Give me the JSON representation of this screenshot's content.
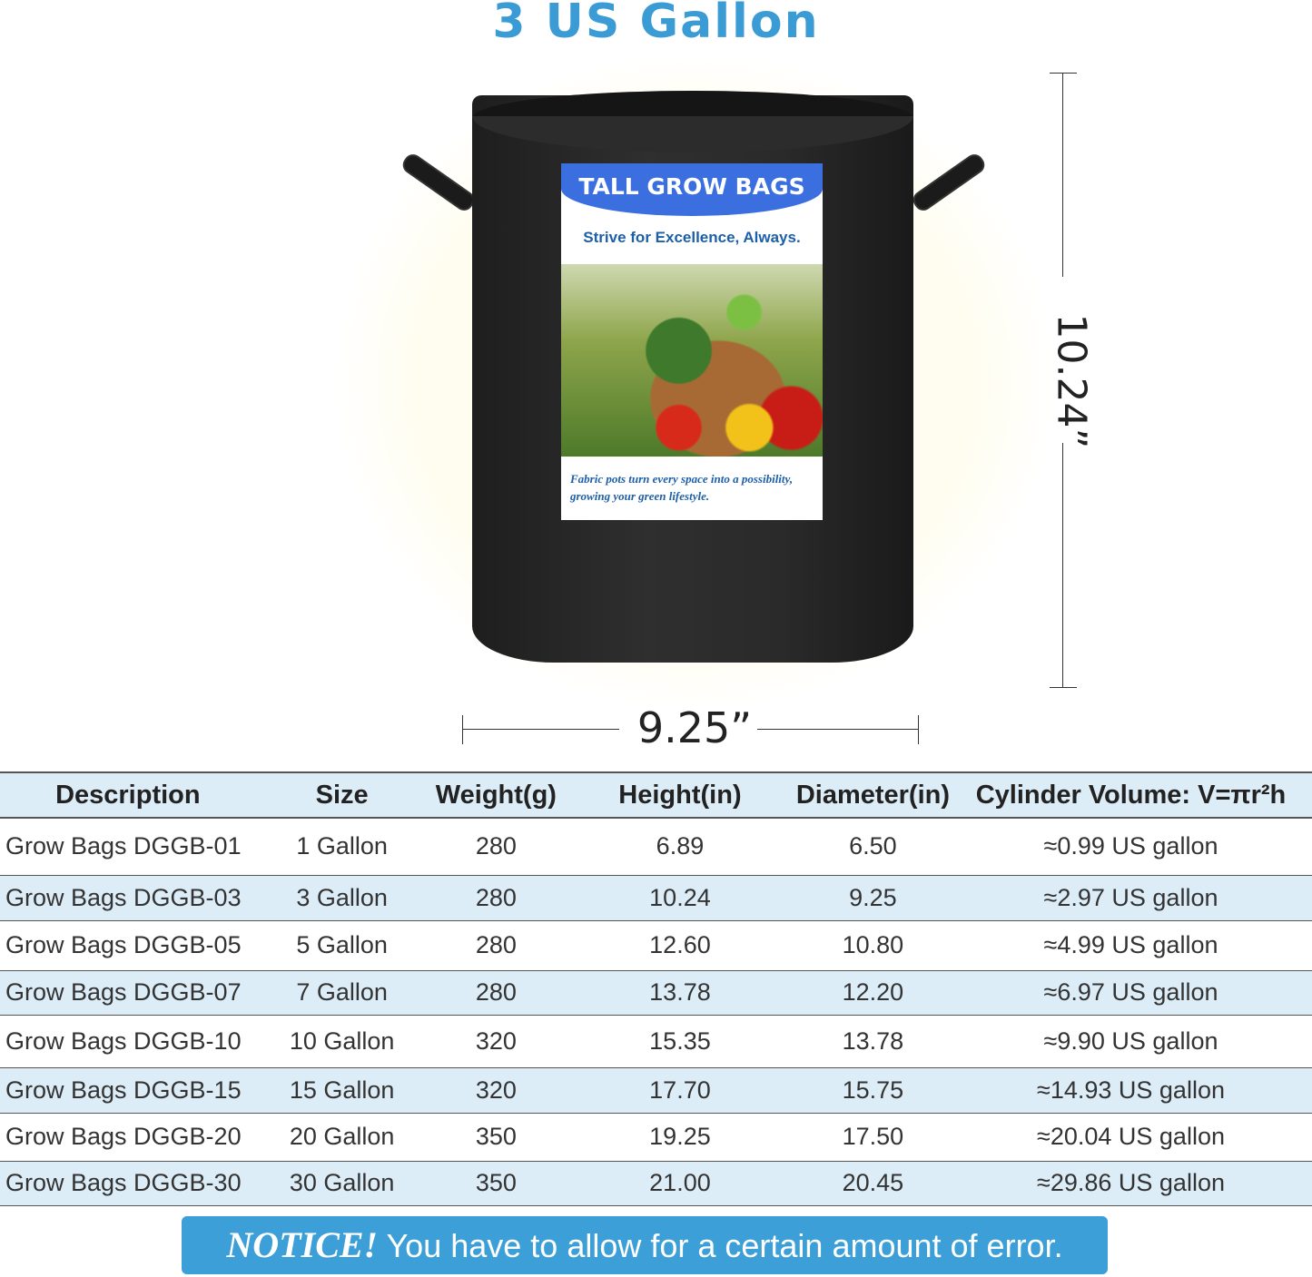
{
  "title": "3 US Gallon",
  "label": {
    "heading": "TALL GROW BAGS",
    "slogan": "Strive for Excellence, Always.",
    "footer": "Fabric pots turn every space into a possibility, growing your green lifestyle."
  },
  "dimensions": {
    "height": "10.24”",
    "diameter": "9.25”"
  },
  "table": {
    "headers": [
      "Description",
      "Size",
      "Weight(g)",
      "Height(in)",
      "Diameter(in)",
      "Cylinder Volume: V=πr²h"
    ],
    "rows": [
      [
        "Grow Bags DGGB-01",
        "1 Gallon",
        "280",
        "6.89",
        "6.50",
        "≈0.99 US gallon"
      ],
      [
        "Grow Bags DGGB-03",
        "3 Gallon",
        "280",
        "10.24",
        "9.25",
        "≈2.97 US gallon"
      ],
      [
        "Grow Bags DGGB-05",
        "5 Gallon",
        "280",
        "12.60",
        "10.80",
        "≈4.99 US gallon"
      ],
      [
        "Grow Bags DGGB-07",
        "7 Gallon",
        "280",
        "13.78",
        "12.20",
        "≈6.97 US gallon"
      ],
      [
        "Grow Bags DGGB-10",
        "10 Gallon",
        "320",
        "15.35",
        "13.78",
        "≈9.90 US gallon"
      ],
      [
        "Grow Bags DGGB-15",
        "15 Gallon",
        "320",
        "17.70",
        "15.75",
        "≈14.93 US gallon"
      ],
      [
        "Grow Bags DGGB-20",
        "20 Gallon",
        "350",
        "19.25",
        "17.50",
        "≈20.04 US gallon"
      ],
      [
        "Grow Bags DGGB-30",
        "30 Gallon",
        "350",
        "21.00",
        "20.45",
        "≈29.86 US gallon"
      ]
    ]
  },
  "notice": {
    "prefix": "NOTICE!",
    "text": " You have to allow for a certain amount of error."
  },
  "colors": {
    "accent": "#3a9bd5",
    "row_shade": "#dcedf8",
    "notice_bg": "#3d9fd7"
  }
}
